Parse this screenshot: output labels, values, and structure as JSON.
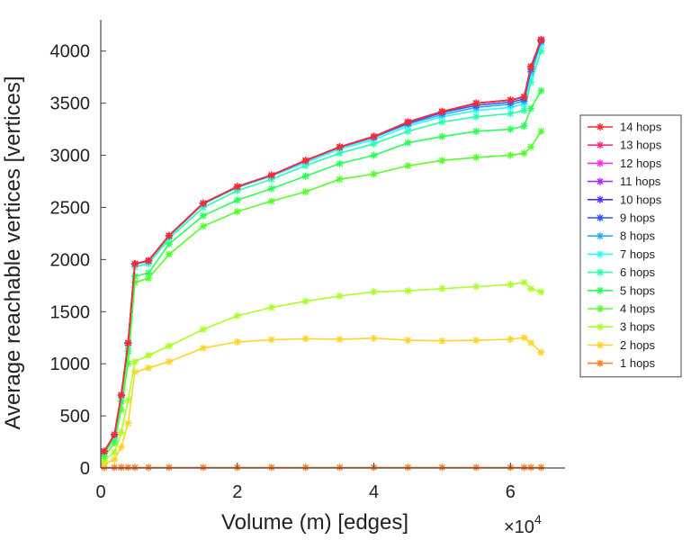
{
  "chart_data": {
    "type": "line",
    "xlabel": "Volume (m) [edges]",
    "ylabel": "Average reachable vertices [vertices]",
    "x_multiplier": "×10",
    "x_multiplier_exp": "4",
    "xlim": [
      0,
      6.8
    ],
    "ylim": [
      0,
      4300
    ],
    "xticks": [
      0,
      2,
      4,
      6
    ],
    "yticks": [
      0,
      500,
      1000,
      1500,
      2000,
      2500,
      3000,
      3500,
      4000
    ],
    "x": [
      0.05,
      0.2,
      0.3,
      0.4,
      0.5,
      0.7,
      1.0,
      1.5,
      2.0,
      2.5,
      3.0,
      3.5,
      4.0,
      4.5,
      5.0,
      5.5,
      6.0,
      6.2,
      6.3,
      6.45
    ],
    "series": [
      {
        "name": "14 hops",
        "color": "#ff2a2a",
        "values": [
          160,
          320,
          700,
          1200,
          1960,
          1990,
          2230,
          2540,
          2700,
          2810,
          2950,
          3080,
          3180,
          3320,
          3420,
          3500,
          3530,
          3560,
          3850,
          4110
        ]
      },
      {
        "name": "13 hops",
        "color": "#ff2a7f",
        "values": [
          160,
          320,
          700,
          1200,
          1960,
          1990,
          2230,
          2540,
          2700,
          2810,
          2950,
          3080,
          3180,
          3320,
          3420,
          3500,
          3530,
          3560,
          3850,
          4110
        ]
      },
      {
        "name": "12 hops",
        "color": "#ff2ad4",
        "values": [
          160,
          320,
          700,
          1200,
          1960,
          1990,
          2230,
          2540,
          2700,
          2810,
          2950,
          3080,
          3180,
          3320,
          3420,
          3500,
          3530,
          3560,
          3850,
          4110
        ]
      },
      {
        "name": "11 hops",
        "color": "#aa2aff",
        "values": [
          160,
          320,
          700,
          1200,
          1960,
          1990,
          2230,
          2540,
          2700,
          2810,
          2950,
          3080,
          3180,
          3320,
          3420,
          3500,
          3530,
          3560,
          3850,
          4110
        ]
      },
      {
        "name": "10 hops",
        "color": "#552aff",
        "values": [
          160,
          320,
          700,
          1200,
          1960,
          1990,
          2230,
          2540,
          2700,
          2810,
          2950,
          3080,
          3180,
          3320,
          3420,
          3500,
          3530,
          3560,
          3850,
          4110
        ]
      },
      {
        "name": "9 hops",
        "color": "#2a55ff",
        "values": [
          160,
          320,
          700,
          1200,
          1960,
          1990,
          2230,
          2540,
          2700,
          2810,
          2950,
          3080,
          3180,
          3310,
          3410,
          3480,
          3510,
          3540,
          3830,
          4100
        ]
      },
      {
        "name": "8 hops",
        "color": "#2aaaff",
        "values": [
          160,
          320,
          700,
          1200,
          1960,
          1985,
          2225,
          2535,
          2695,
          2805,
          2945,
          3075,
          3170,
          3300,
          3390,
          3460,
          3490,
          3520,
          3800,
          4090
        ]
      },
      {
        "name": "7 hops",
        "color": "#2affff",
        "values": [
          160,
          310,
          690,
          1190,
          1950,
          1980,
          2220,
          2530,
          2690,
          2800,
          2930,
          3060,
          3150,
          3280,
          3370,
          3430,
          3460,
          3490,
          3760,
          4060
        ]
      },
      {
        "name": "6 hops",
        "color": "#2affaa",
        "values": [
          155,
          300,
          680,
          1180,
          1930,
          1960,
          2200,
          2500,
          2660,
          2770,
          2900,
          3020,
          3110,
          3230,
          3320,
          3370,
          3400,
          3430,
          3700,
          4000
        ]
      },
      {
        "name": "5 hops",
        "color": "#2aff55",
        "values": [
          140,
          280,
          640,
          1120,
          1840,
          1870,
          2150,
          2420,
          2570,
          2680,
          2800,
          2920,
          3000,
          3120,
          3180,
          3230,
          3250,
          3280,
          3450,
          3620
        ]
      },
      {
        "name": "4 hops",
        "color": "#55ff2a",
        "values": [
          110,
          240,
          560,
          1000,
          1780,
          1820,
          2050,
          2320,
          2460,
          2560,
          2650,
          2770,
          2820,
          2900,
          2950,
          2980,
          3000,
          3020,
          3080,
          3230
        ]
      },
      {
        "name": "3 hops",
        "color": "#aaff2a",
        "values": [
          70,
          150,
          340,
          650,
          1020,
          1080,
          1170,
          1330,
          1460,
          1540,
          1600,
          1650,
          1690,
          1700,
          1720,
          1740,
          1760,
          1780,
          1720,
          1690
        ]
      },
      {
        "name": "2 hops",
        "color": "#ffd42a",
        "values": [
          40,
          80,
          200,
          430,
          920,
          960,
          1020,
          1150,
          1210,
          1230,
          1240,
          1235,
          1245,
          1225,
          1220,
          1225,
          1235,
          1250,
          1200,
          1110
        ]
      },
      {
        "name": "1 hops",
        "color": "#ff7f2a",
        "values": [
          5,
          5,
          5,
          5,
          5,
          5,
          5,
          5,
          5,
          5,
          5,
          5,
          5,
          5,
          5,
          5,
          5,
          5,
          5,
          5
        ]
      }
    ]
  }
}
